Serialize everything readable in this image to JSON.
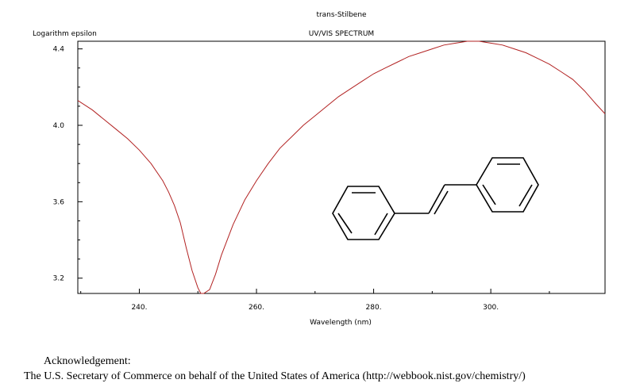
{
  "chart_data": {
    "type": "line",
    "title": "trans-Stilbene",
    "subtitle": "UV/VIS SPECTRUM",
    "xlabel": "Wavelength (nm)",
    "ylabel": "Logarithm epsilon",
    "xlim": [
      229.5,
      319.5
    ],
    "ylim": [
      3.12,
      4.44
    ],
    "x_ticks": [
      240,
      260,
      280,
      300
    ],
    "x_tick_labels": [
      "240.",
      "260.",
      "280.",
      "300."
    ],
    "y_ticks": [
      3.2,
      3.6,
      4.0,
      4.4
    ],
    "y_tick_labels": [
      "3.2",
      "3.6",
      "4.0",
      "4.4"
    ],
    "grid": false,
    "line_color": "#b22222",
    "series": [
      {
        "x": [
          229.5,
          232,
          234,
          236,
          238,
          240,
          242,
          244,
          245,
          246,
          247,
          248,
          249,
          250,
          250.5,
          251,
          252,
          253,
          254,
          256,
          258,
          260,
          262,
          264,
          266,
          268,
          270,
          272,
          274,
          276,
          278,
          280,
          282,
          284,
          286,
          288,
          290,
          292,
          294,
          296,
          298,
          300,
          302,
          304,
          306,
          308,
          310,
          312,
          314,
          316,
          318,
          319.5
        ],
        "y": [
          4.13,
          4.08,
          4.03,
          3.98,
          3.93,
          3.87,
          3.8,
          3.71,
          3.65,
          3.58,
          3.49,
          3.36,
          3.24,
          3.15,
          3.12,
          3.12,
          3.14,
          3.22,
          3.32,
          3.48,
          3.61,
          3.71,
          3.8,
          3.88,
          3.94,
          4.0,
          4.05,
          4.1,
          4.15,
          4.19,
          4.23,
          4.27,
          4.3,
          4.33,
          4.36,
          4.38,
          4.4,
          4.42,
          4.43,
          4.44,
          4.44,
          4.43,
          4.42,
          4.4,
          4.38,
          4.35,
          4.32,
          4.28,
          4.24,
          4.18,
          4.11,
          4.06
        ]
      }
    ]
  },
  "acknowledgement": {
    "heading": "Acknowledgement:",
    "text": "The U.S. Secretary of Commerce on behalf of the United States of America (http://webbook.nist.gov/chemistry/)"
  }
}
